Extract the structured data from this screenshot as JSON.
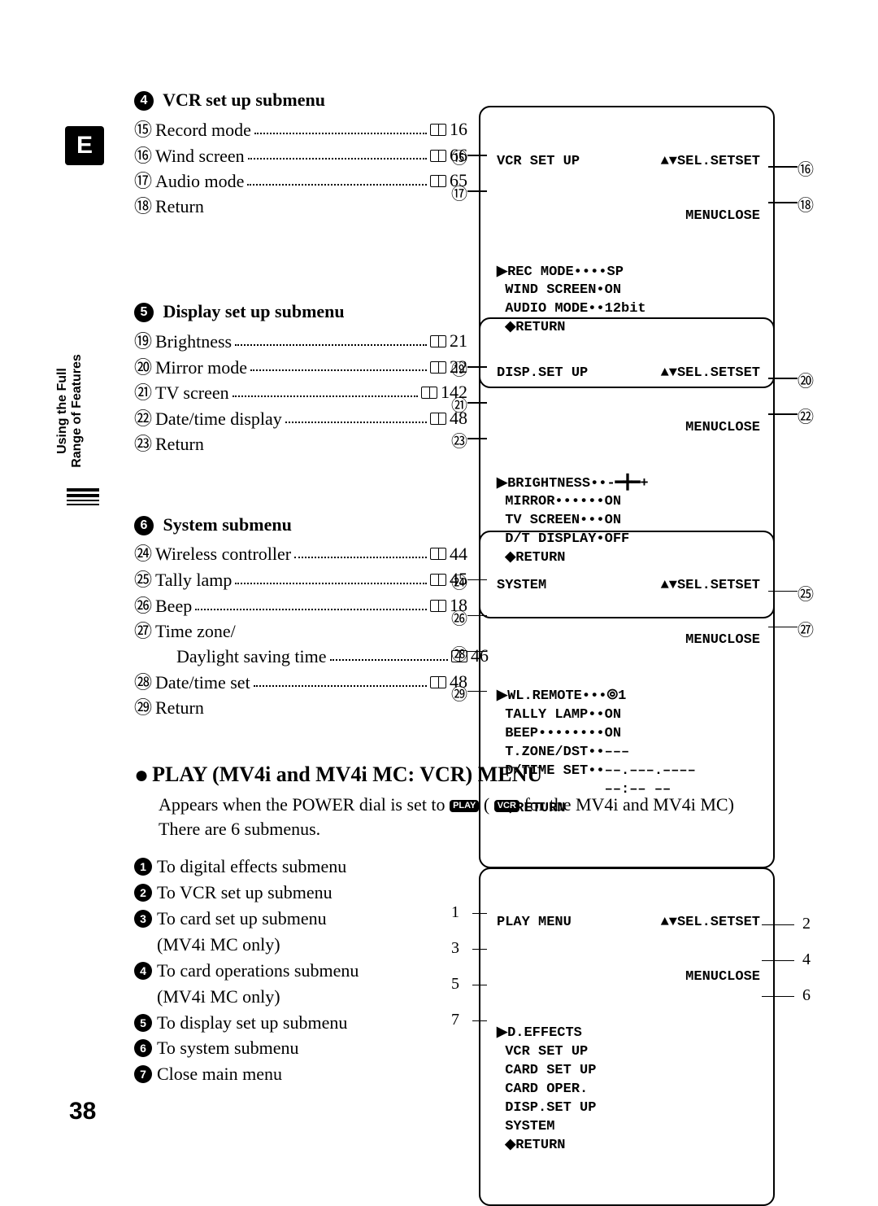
{
  "e_badge": "E",
  "sidebar_text_line1": "Using the Full",
  "sidebar_text_line2": "Range of Features",
  "sections": {
    "vcr": {
      "num": "4",
      "title": "VCR set up submenu",
      "items": [
        {
          "n": "⑮",
          "label": "Record mode",
          "page": "16"
        },
        {
          "n": "⑯",
          "label": "Wind screen",
          "page": "66"
        },
        {
          "n": "⑰",
          "label": "Audio mode",
          "page": "65"
        },
        {
          "n": "⑱",
          "label": "Return",
          "page": ""
        }
      ],
      "screen": {
        "title": "VCR SET UP",
        "sel": "▲▼SEL.SETSET",
        "menu": "MENUCLOSE",
        "lines": [
          "▶REC MODE••••SP",
          " WIND SCREEN•ON",
          " AUDIO MODE••12bit",
          " ◆RETURN"
        ]
      },
      "left_nums": [
        "⑮",
        "⑰"
      ],
      "right_nums": [
        "⑯",
        "⑱"
      ]
    },
    "disp": {
      "num": "5",
      "title": "Display set up submenu",
      "items": [
        {
          "n": "⑲",
          "label": "Brightness",
          "page": "21"
        },
        {
          "n": "⑳",
          "label": "Mirror mode",
          "page": "22"
        },
        {
          "n": "㉑",
          "label": "TV screen",
          "page": "142"
        },
        {
          "n": "㉒",
          "label": "Date/time display",
          "page": "48"
        },
        {
          "n": "㉓",
          "label": "Return",
          "page": ""
        }
      ],
      "screen": {
        "title": "DISP.SET UP",
        "sel": "▲▼SEL.SETSET",
        "menu": "MENUCLOSE",
        "lines": [
          "▶BRIGHTNESS••-━╋━+",
          " MIRROR••••••ON",
          " TV SCREEN•••ON",
          " D/T DISPLAY•OFF",
          " ◆RETURN"
        ]
      },
      "left_nums": [
        "⑲",
        "㉑",
        "㉓"
      ],
      "right_nums": [
        "⑳",
        "㉒"
      ]
    },
    "sys": {
      "num": "6",
      "title": "System submenu",
      "items": [
        {
          "n": "㉔",
          "label": "Wireless controller",
          "page": "44"
        },
        {
          "n": "㉕",
          "label": "Tally lamp",
          "page": "45"
        },
        {
          "n": "㉖",
          "label": "Beep",
          "page": "18"
        },
        {
          "n": "㉗",
          "label": "Time zone/",
          "page": ""
        },
        {
          "n": "",
          "label": "Daylight saving time",
          "page": "46",
          "indent": true
        },
        {
          "n": "㉘",
          "label": "Date/time set",
          "page": "48"
        },
        {
          "n": "㉙",
          "label": "Return",
          "page": ""
        }
      ],
      "screen": {
        "title": "SYSTEM",
        "sel": "▲▼SEL.SETSET",
        "menu": "MENUCLOSE",
        "lines": [
          "▶WL.REMOTE•••⦾1",
          " TALLY LAMP••ON",
          " BEEP••••••••ON",
          " T.ZONE/DST••–––",
          " D/TIME SET••––.–––.––––",
          "             ––:–– ––",
          " ◆RETURN"
        ]
      },
      "left_nums": [
        "㉔",
        "㉖",
        "㉘",
        "㉙"
      ],
      "right_nums": [
        "㉕",
        "㉗"
      ]
    }
  },
  "play": {
    "heading": "PLAY (MV4i and MV4i MC: VCR) MENU",
    "desc_pre": "Appears when the POWER dial is set to ",
    "badge1": "PLAY",
    "desc_mid": " ( ",
    "badge2": "VCR",
    "desc_post": " for the MV4i and MV4i MC)",
    "desc_line2": "There are 6 submenus.",
    "items": [
      {
        "n": "1",
        "label": "To digital effects submenu"
      },
      {
        "n": "2",
        "label": "To VCR set up submenu"
      },
      {
        "n": "3",
        "label": "To card set up submenu",
        "sub": "(MV4i MC only)"
      },
      {
        "n": "4",
        "label": "To card operations submenu",
        "sub": "(MV4i MC only)"
      },
      {
        "n": "5",
        "label": "To display set up submenu"
      },
      {
        "n": "6",
        "label": "To system submenu"
      },
      {
        "n": "7",
        "label": "Close main menu"
      }
    ],
    "screen": {
      "title": "PLAY MENU",
      "sel": "▲▼SEL.SETSET",
      "menu": "MENUCLOSE",
      "lines": [
        "▶D.EFFECTS",
        " VCR SET UP",
        " CARD SET UP",
        " CARD OPER.",
        " DISP.SET UP",
        " SYSTEM",
        " ◆RETURN"
      ]
    },
    "left_badges": [
      "1",
      "3",
      "5",
      "7"
    ],
    "right_badges": [
      "2",
      "4",
      "6"
    ]
  },
  "page_number": "38"
}
